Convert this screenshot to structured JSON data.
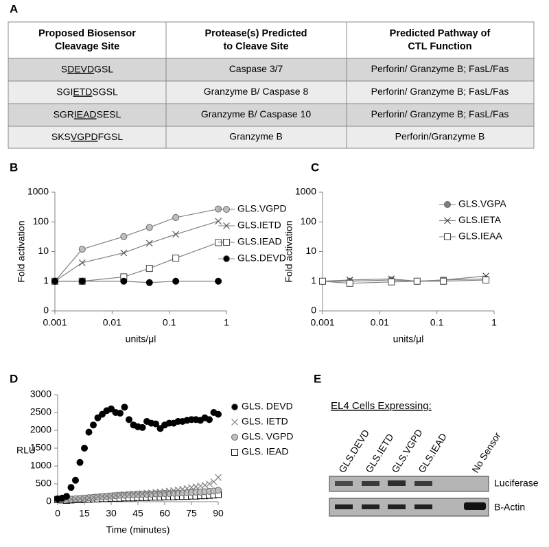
{
  "table": {
    "panel": "A",
    "header": [
      [
        "Proposed Biosensor",
        "Cleavage Site"
      ],
      [
        "Protease(s) Predicted",
        "to Cleave Site"
      ],
      [
        "Predicted Pathway  of",
        "CTL Function"
      ]
    ],
    "rows": [
      [
        {
          "prefix": "S",
          "underlined": "DEVD",
          "suffix": "GSL"
        },
        "Caspase 3/7",
        "Perforin/ Granzyme B; FasL/Fas"
      ],
      [
        {
          "prefix": "SGI",
          "underlined": "ETD",
          "suffix": "SGSL"
        },
        "Granzyme B/ Caspase 8",
        "Perforin/ Granzyme B; FasL/Fas"
      ],
      [
        {
          "prefix": "SGR",
          "underlined": "IEAD",
          "suffix": "SESL"
        },
        "Granzyme B/ Caspase 10",
        "Perforin/ Granzyme B; FasL/Fas"
      ],
      [
        {
          "prefix": "SKS",
          "underlined": "VGPD",
          "suffix": "FGSL"
        },
        "Granzyme B",
        "Perforin/Granzyme B"
      ]
    ]
  },
  "chart_data": [
    {
      "type": "line",
      "panel": "B",
      "xlabel": "units/μl",
      "ylabel": "Fold activation",
      "xscale": "log",
      "yscale": "log",
      "xlim": [
        0.001,
        1
      ],
      "xticks": [
        0.001,
        0.01,
        0.1,
        1
      ],
      "ylim": [
        0.1,
        1000
      ],
      "yticks": [
        {
          "value": 0.1,
          "label": "0"
        },
        1,
        10,
        100,
        1000
      ],
      "legend": "right",
      "x": [
        0.001,
        0.003,
        0.016,
        0.045,
        0.13,
        0.72
      ],
      "series": [
        {
          "name": "GLS.VGPD",
          "color": "#bfbfbf",
          "marker": "circle",
          "values": [
            1,
            12,
            32,
            65,
            140,
            270
          ]
        },
        {
          "name": "GLS.IETD",
          "color": "#595959",
          "marker": "x",
          "values": [
            1,
            4.2,
            9,
            19,
            38,
            105
          ]
        },
        {
          "name": "GLS.IEAD",
          "color": "#404040",
          "marker": "square",
          "values": [
            1,
            1,
            1.4,
            2.7,
            6,
            20
          ]
        },
        {
          "name": "GLS.DEVD",
          "color": "#000000",
          "marker": "circle",
          "values": [
            1,
            1,
            1,
            0.9,
            1,
            1
          ]
        }
      ]
    },
    {
      "type": "line",
      "panel": "C",
      "xlabel": "units/μl",
      "ylabel": "Fold activation",
      "xscale": "log",
      "yscale": "log",
      "xlim": [
        0.001,
        1
      ],
      "xticks": [
        0.001,
        0.01,
        0.1,
        1
      ],
      "ylim": [
        0.1,
        1000
      ],
      "yticks": [
        {
          "value": 0.1,
          "label": "0"
        },
        1,
        10,
        100,
        1000
      ],
      "legend": "right",
      "x": [
        0.001,
        0.003,
        0.016,
        0.045,
        0.13,
        0.72
      ],
      "series": [
        {
          "name": "GLS.VGPA",
          "color": "#7f7f7f",
          "marker": "circle",
          "values": [
            1,
            1,
            1.1,
            1,
            1.1,
            1.2
          ]
        },
        {
          "name": "GLS.IETA",
          "color": "#404040",
          "marker": "x",
          "values": [
            1,
            1.1,
            1.2,
            1,
            1.1,
            1.5
          ]
        },
        {
          "name": "GLS.IEAA",
          "color": "#404040",
          "marker": "square",
          "values": [
            1,
            0.85,
            0.95,
            1,
            1,
            1.1
          ]
        }
      ]
    },
    {
      "type": "scatter",
      "panel": "D",
      "xlabel": "Time (minutes)",
      "ylabel": "RLU",
      "xlim": [
        0,
        90
      ],
      "xticks": [
        0,
        15,
        30,
        45,
        60,
        75,
        90
      ],
      "ylim": [
        0,
        3000
      ],
      "yticks": [
        0,
        500,
        1000,
        1500,
        2000,
        2500,
        3000
      ],
      "legend": "right",
      "x": [
        0,
        2.5,
        5,
        7.5,
        10,
        12.5,
        15,
        17.5,
        20,
        22.5,
        25,
        27.5,
        30,
        32.5,
        35,
        37.5,
        40,
        42.5,
        45,
        47.5,
        50,
        52.5,
        55,
        57.5,
        60,
        62.5,
        65,
        67.5,
        70,
        72.5,
        75,
        77.5,
        80,
        82.5,
        85,
        87.5,
        90
      ],
      "series": [
        {
          "name": "GLS. DEVD",
          "color": "#000000",
          "marker": "circle",
          "values": [
            80,
            100,
            150,
            400,
            600,
            1100,
            1500,
            1950,
            2150,
            2350,
            2450,
            2550,
            2600,
            2500,
            2480,
            2650,
            2300,
            2150,
            2100,
            2080,
            2250,
            2200,
            2180,
            2050,
            2150,
            2200,
            2200,
            2250,
            2250,
            2280,
            2300,
            2300,
            2280,
            2350,
            2300,
            2500,
            2450
          ]
        },
        {
          "name": "GLS. IETD",
          "color": "#7f7f7f",
          "marker": "x",
          "values": [
            80,
            70,
            60,
            70,
            80,
            90,
            100,
            110,
            120,
            140,
            150,
            160,
            170,
            180,
            190,
            200,
            210,
            220,
            220,
            230,
            240,
            250,
            260,
            270,
            280,
            300,
            310,
            330,
            350,
            370,
            400,
            420,
            440,
            460,
            500,
            560,
            680
          ]
        },
        {
          "name": "GLS. VGPD",
          "color": "#bfbfbf",
          "marker": "circle",
          "values": [
            80,
            70,
            60,
            70,
            80,
            90,
            100,
            110,
            120,
            130,
            140,
            150,
            160,
            170,
            180,
            180,
            190,
            190,
            200,
            200,
            210,
            210,
            220,
            220,
            230,
            230,
            240,
            240,
            250,
            250,
            260,
            270,
            270,
            280,
            290,
            300,
            320
          ]
        },
        {
          "name": "GLS. IEAD",
          "color": "#000000",
          "marker": "square",
          "values": [
            60,
            50,
            40,
            50,
            60,
            60,
            70,
            70,
            80,
            80,
            90,
            90,
            100,
            100,
            100,
            110,
            110,
            110,
            120,
            120,
            120,
            130,
            130,
            130,
            140,
            140,
            140,
            150,
            150,
            150,
            160,
            160,
            170,
            170,
            180,
            190,
            200
          ]
        }
      ]
    }
  ],
  "gel": {
    "panel": "E",
    "title": "EL4 Cells  Expressing:",
    "lanes": [
      "GLS.DEVD",
      "GLS.IETD",
      "GLS.VGPD",
      "GLS.IEAD",
      "No Sensor"
    ],
    "rows": [
      "Luciferase",
      "B-Actin"
    ]
  }
}
